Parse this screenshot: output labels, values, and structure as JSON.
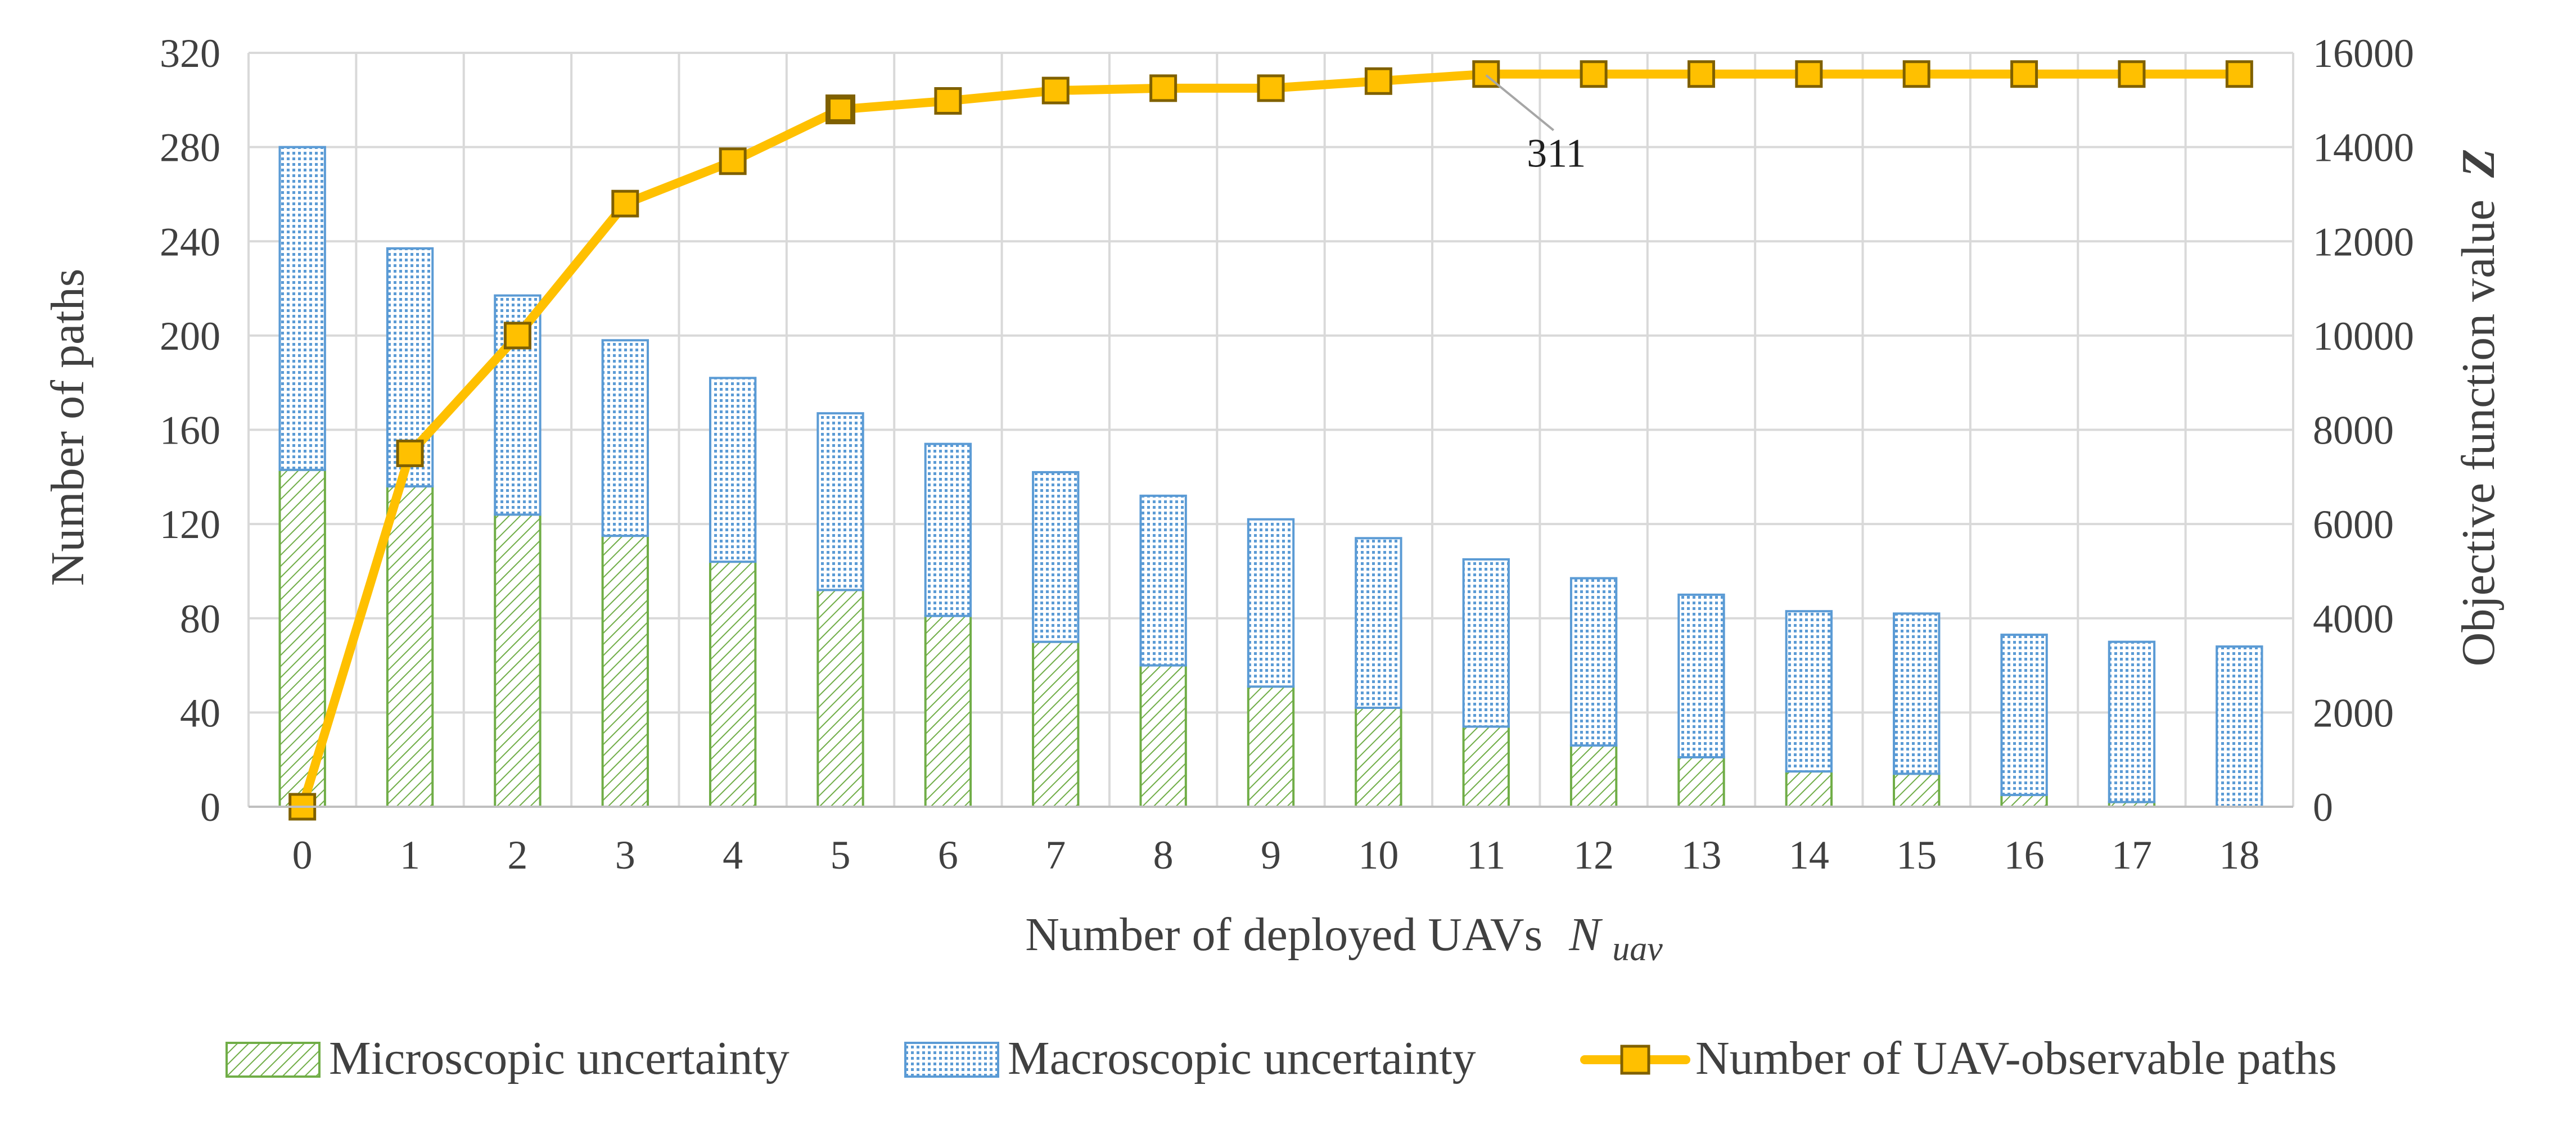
{
  "chart_data": {
    "type": "bar",
    "subtype": "stacked-bar-with-line-secondary-axis",
    "categories": [
      "0",
      "1",
      "2",
      "3",
      "4",
      "5",
      "6",
      "7",
      "8",
      "9",
      "10",
      "11",
      "12",
      "13",
      "14",
      "15",
      "16",
      "17",
      "18"
    ],
    "series": [
      {
        "name": "Microscopic uncertainty",
        "kind": "bar",
        "axis": "left",
        "color": "#70AD47",
        "pattern": "diagonal-hatch",
        "values": [
          143,
          136,
          124,
          115,
          104,
          92,
          81,
          70,
          60,
          51,
          42,
          34,
          26,
          21,
          15,
          14,
          5,
          2,
          0
        ]
      },
      {
        "name": "Macroscopic uncertainty",
        "kind": "bar",
        "axis": "left",
        "color": "#5B9BD5",
        "pattern": "dotted-grid",
        "values": [
          137,
          101,
          93,
          83,
          78,
          75,
          73,
          72,
          72,
          71,
          72,
          71,
          71,
          69,
          68,
          68,
          68,
          68,
          68
        ]
      },
      {
        "name": "Number of UAV-observable paths",
        "kind": "line",
        "axis": "right",
        "color": "#FFC000",
        "marker": "square",
        "values": [
          0,
          7500,
          10000,
          12800,
          13700,
          14800,
          14980,
          15200,
          15250,
          15250,
          15400,
          15550,
          15550,
          15550,
          15550,
          15550,
          15550,
          15550,
          15550
        ],
        "highlighted_index": 5
      }
    ],
    "title": "",
    "xlabel": "Number of deployed UAVs",
    "xlabel_symbol": "N",
    "xlabel_subscript": "uav",
    "ylabel": "Number of paths",
    "ylim": [
      0,
      320
    ],
    "yticks": [
      "0",
      "40",
      "80",
      "120",
      "160",
      "200",
      "240",
      "280",
      "320"
    ],
    "y2label": "Objective function value",
    "y2label_symbol": "Z",
    "y2lim": [
      0,
      16000
    ],
    "y2ticks": [
      "0",
      "2000",
      "4000",
      "6000",
      "8000",
      "10000",
      "12000",
      "14000",
      "16000"
    ],
    "grid": true,
    "legend_position": "bottom",
    "annotations": [
      {
        "text": "311",
        "category_index": 11,
        "series_index": 2
      }
    ]
  },
  "colors": {
    "micro": "#70AD47",
    "macro": "#5B9BD5",
    "line": "#FFC000",
    "marker_edge": "#7F6000",
    "grid": "#D9D9D9",
    "text": "#404040"
  }
}
